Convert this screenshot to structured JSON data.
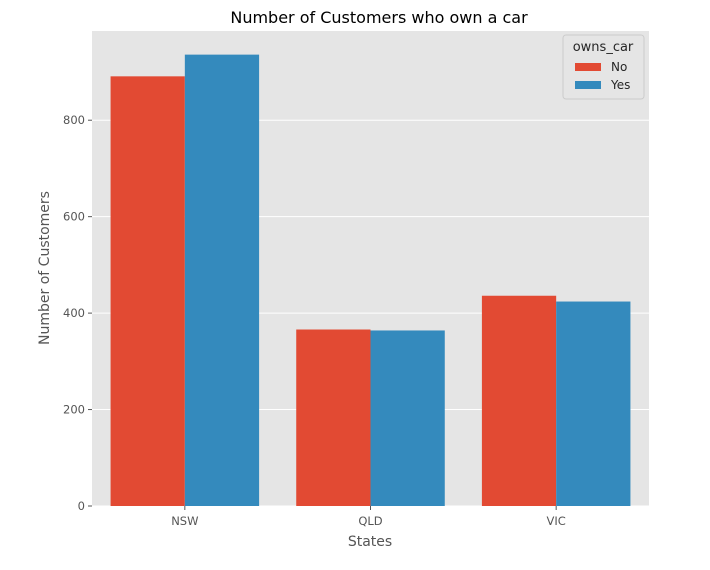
{
  "chart_data": {
    "type": "bar",
    "title": "Number of Customers who own a car",
    "xlabel": "States",
    "ylabel": "Number of Customers",
    "categories": [
      "NSW",
      "QLD",
      "VIC"
    ],
    "series": [
      {
        "name": "No",
        "color": "#E24A33",
        "values": [
          891,
          366,
          436
        ]
      },
      {
        "name": "Yes",
        "color": "#348ABD",
        "values": [
          936,
          364,
          424
        ]
      }
    ],
    "ylim": [
      0,
      985
    ],
    "yticks": [
      0,
      200,
      400,
      600,
      800
    ],
    "grid": true,
    "background": "#E5E5E5",
    "legend": {
      "title": "owns_car",
      "placement": "top-right"
    }
  }
}
